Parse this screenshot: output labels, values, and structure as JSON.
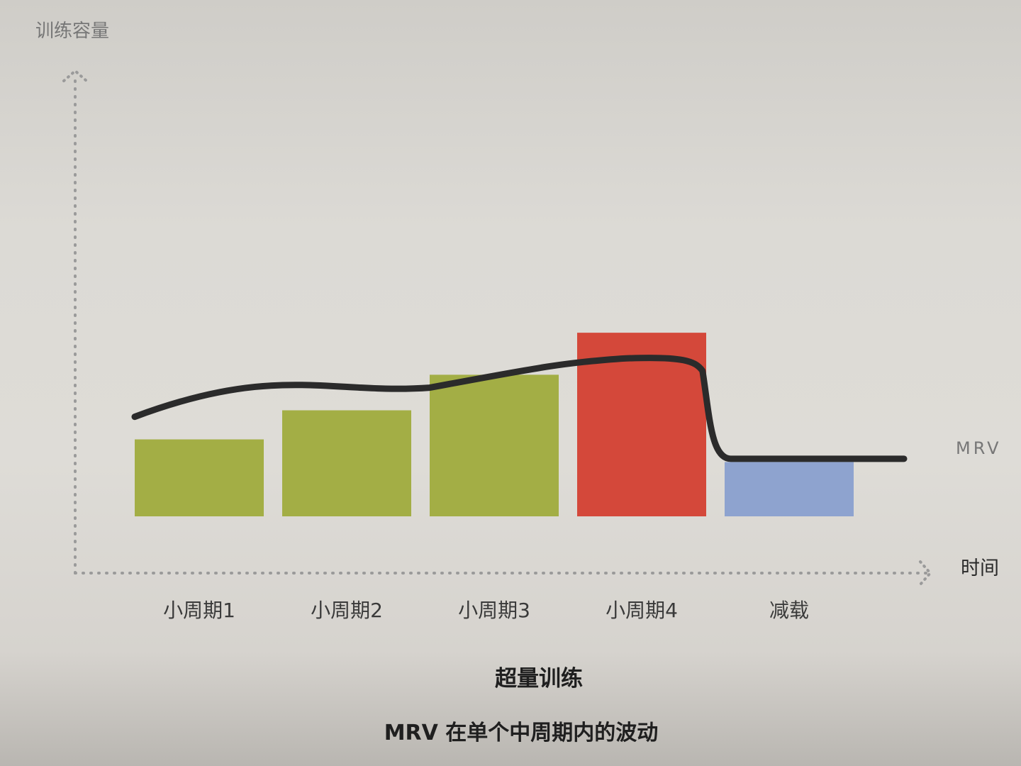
{
  "chart_data": {
    "type": "bar",
    "title": "超量训练",
    "caption": "MRV 在单个中周期内的波动",
    "ylabel": "训练容量",
    "xlabel": "时间",
    "categories": [
      "小周期1",
      "小周期2",
      "小周期3",
      "小周期4",
      "减载"
    ],
    "values": [
      1.3,
      1.75,
      2.3,
      2.95,
      0.95
    ],
    "bar_colors": [
      "#a3ae45",
      "#a3ae45",
      "#a3ae45",
      "#d4483a",
      "#8ea3cf"
    ],
    "trend_line": {
      "values": [
        1.65,
        2.1,
        2.55,
        2.8,
        1.0
      ]
    },
    "reference_line": {
      "label": "MRV",
      "value": 1.0
    },
    "ylim": [
      0,
      7
    ],
    "grid": false,
    "legend": "none"
  }
}
